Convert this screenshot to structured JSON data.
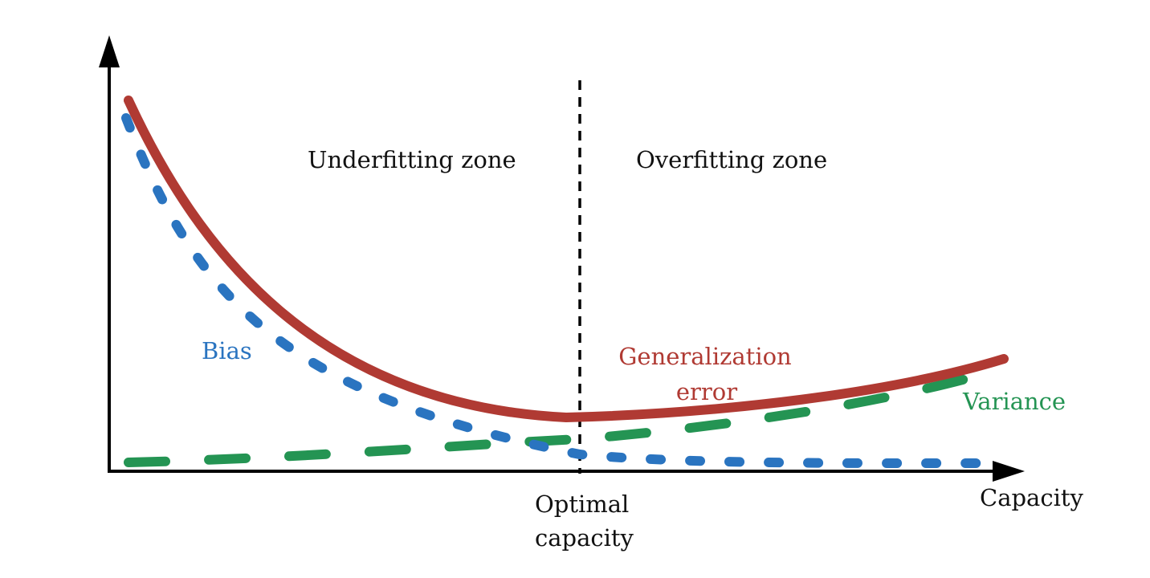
{
  "labels": {
    "underfitting_zone": "Underfitting zone",
    "overfitting_zone": "Overfitting zone",
    "bias": "Bias",
    "generalization_line1": "Generalization",
    "generalization_line2": "error",
    "variance": "Variance",
    "optimal_line1": "Optimal",
    "optimal_line2": "capacity",
    "x_axis": "Capacity"
  },
  "colors": {
    "bias": "#2a74c0",
    "generalization_error": "#b03a33",
    "variance": "#249453",
    "axis": "#000000",
    "text": "#111111"
  }
}
